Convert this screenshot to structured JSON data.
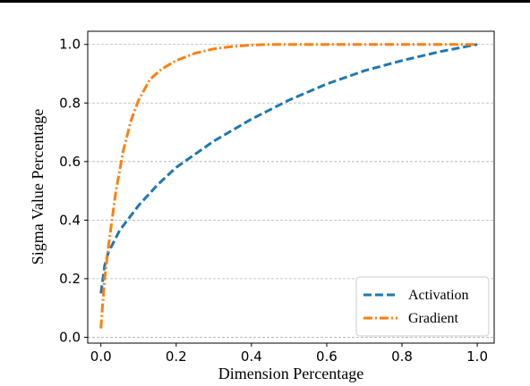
{
  "chart_data": {
    "type": "line",
    "xlabel": "Dimension Percentage",
    "ylabel": "Sigma Value Percentage",
    "xlim": [
      -0.035,
      1.045
    ],
    "ylim": [
      -0.02,
      1.045
    ],
    "xticks": [
      "0.0",
      "0.2",
      "0.4",
      "0.6",
      "0.8",
      "1.0"
    ],
    "yticks": [
      "0.0",
      "0.2",
      "0.4",
      "0.6",
      "0.8",
      "1.0"
    ],
    "grid": "horizontal dashed",
    "legend_position": "bottom-right",
    "series": [
      {
        "name": "Activation",
        "color": "#1f77b4",
        "style": "dashed",
        "x": [
          0.0,
          0.01,
          0.02,
          0.05,
          0.1,
          0.15,
          0.2,
          0.3,
          0.4,
          0.5,
          0.6,
          0.7,
          0.8,
          0.9,
          1.0
        ],
        "y": [
          0.15,
          0.245,
          0.29,
          0.365,
          0.45,
          0.52,
          0.58,
          0.67,
          0.745,
          0.81,
          0.865,
          0.91,
          0.945,
          0.975,
          1.0
        ]
      },
      {
        "name": "Gradient",
        "color": "#ff7f0e",
        "style": "dashdot",
        "x": [
          0.0,
          0.005,
          0.01,
          0.02,
          0.04,
          0.06,
          0.08,
          0.1,
          0.13,
          0.16,
          0.2,
          0.25,
          0.3,
          0.35,
          0.4,
          0.45,
          0.5,
          0.6,
          0.8,
          1.0
        ],
        "y": [
          0.03,
          0.12,
          0.2,
          0.31,
          0.5,
          0.64,
          0.74,
          0.81,
          0.88,
          0.915,
          0.945,
          0.97,
          0.985,
          0.993,
          0.998,
          1.0,
          1.0,
          1.0,
          1.0,
          1.0
        ]
      }
    ]
  }
}
